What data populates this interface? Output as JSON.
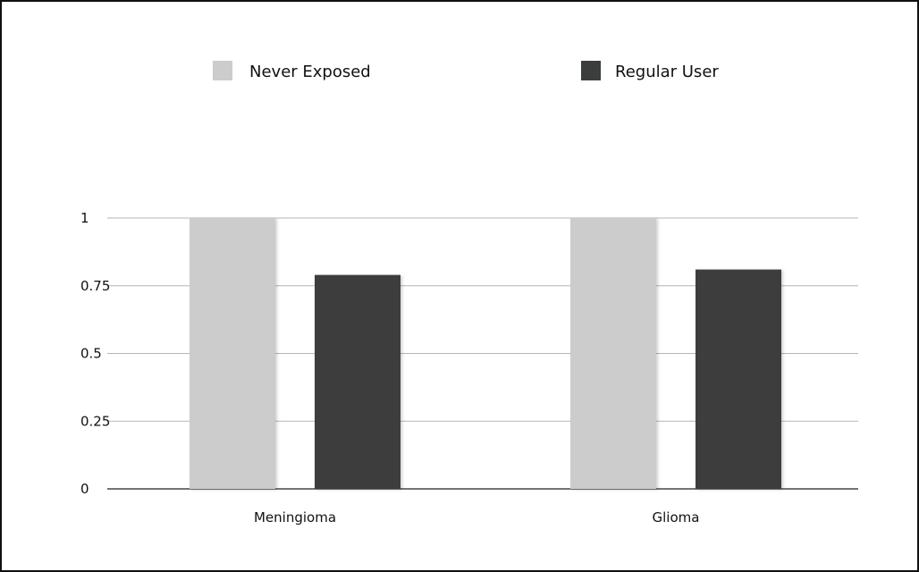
{
  "chart_data": {
    "type": "bar",
    "title": "",
    "xlabel": "",
    "ylabel": "",
    "categories": [
      "Meningioma",
      "Glioma"
    ],
    "series": [
      {
        "name": "Never Exposed",
        "values": [
          1.0,
          1.0
        ],
        "color": "#cccccc"
      },
      {
        "name": "Regular User",
        "values": [
          0.79,
          0.81
        ],
        "color": "#3c3d3d"
      }
    ],
    "ylim": [
      0,
      1
    ],
    "yticks": [
      {
        "value": 0,
        "label": "0"
      },
      {
        "value": 0.25,
        "label": "0.25"
      },
      {
        "value": 0.5,
        "label": "0.5"
      },
      {
        "value": 0.75,
        "label": "0.75"
      },
      {
        "value": 1,
        "label": "1"
      }
    ],
    "grid": true,
    "legend": "top-center"
  }
}
